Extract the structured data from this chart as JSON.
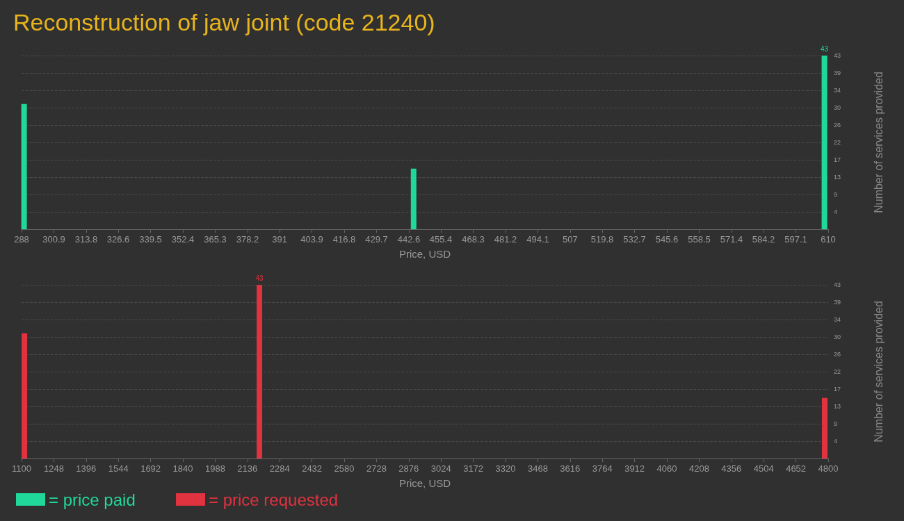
{
  "chart_data": [
    {
      "type": "bar",
      "title": "Reconstruction of jaw joint (code 21240)",
      "xlabel": "Price, USD",
      "ylabel": "Number of services provided",
      "x": [
        289,
        444.5,
        608.5
      ],
      "series": [
        {
          "name": "= price paid",
          "color": "#20d89a",
          "values": [
            31,
            15,
            43
          ],
          "value_labels": [
            null,
            null,
            "43"
          ]
        }
      ],
      "xlim": [
        288,
        610
      ],
      "xticks": [
        288,
        300.9,
        313.8,
        326.6,
        339.5,
        352.4,
        365.3,
        378.2,
        391,
        403.9,
        416.8,
        429.7,
        442.6,
        455.4,
        468.3,
        481.2,
        494.1,
        507,
        519.8,
        532.7,
        545.6,
        558.5,
        571.4,
        584.2,
        597.1,
        610
      ],
      "ylim": [
        0,
        43
      ],
      "yticks": [
        {
          "value": 4.3,
          "label": "4"
        },
        {
          "value": 8.6,
          "label": "9"
        },
        {
          "value": 12.9,
          "label": "13"
        },
        {
          "value": 17.2,
          "label": "17"
        },
        {
          "value": 21.5,
          "label": "22"
        },
        {
          "value": 25.8,
          "label": "26"
        },
        {
          "value": 30.1,
          "label": "30"
        },
        {
          "value": 34.4,
          "label": "34"
        },
        {
          "value": 38.7,
          "label": "39"
        },
        {
          "value": 43,
          "label": "43"
        }
      ],
      "grid": "y",
      "legend": "bottom left"
    },
    {
      "type": "bar",
      "xlabel": "Price, USD",
      "ylabel": "Number of services provided",
      "x": [
        1113,
        2191,
        4784
      ],
      "series": [
        {
          "name": "= price requested",
          "color": "#e0323f",
          "values": [
            31,
            43,
            15
          ],
          "value_labels": [
            null,
            "43",
            null
          ]
        }
      ],
      "xlim": [
        1100,
        4800
      ],
      "xticks": [
        1100,
        1248,
        1396,
        1544,
        1692,
        1840,
        1988,
        2136,
        2284,
        2432,
        2580,
        2728,
        2876,
        3024,
        3172,
        3320,
        3468,
        3616,
        3764,
        3912,
        4060,
        4208,
        4356,
        4504,
        4652,
        4800
      ],
      "ylim": [
        0,
        43
      ],
      "yticks": [
        {
          "value": 4.3,
          "label": "4"
        },
        {
          "value": 8.6,
          "label": "9"
        },
        {
          "value": 12.9,
          "label": "13"
        },
        {
          "value": 17.2,
          "label": "17"
        },
        {
          "value": 21.5,
          "label": "22"
        },
        {
          "value": 25.8,
          "label": "26"
        },
        {
          "value": 30.1,
          "label": "30"
        },
        {
          "value": 34.4,
          "label": "34"
        },
        {
          "value": 38.7,
          "label": "39"
        },
        {
          "value": 43,
          "label": "43"
        }
      ],
      "grid": "y",
      "legend": "bottom left"
    }
  ]
}
